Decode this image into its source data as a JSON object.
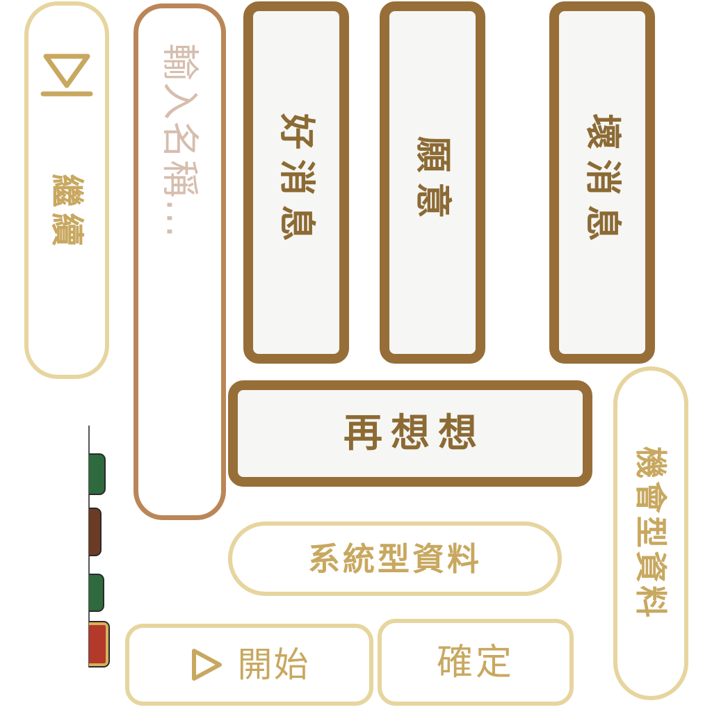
{
  "buttons": {
    "continue": {
      "label": "繼續",
      "icon": "play-to-end-icon"
    },
    "name_input": {
      "placeholder": "輸入名稱...",
      "value": ""
    },
    "good_news": {
      "label": "好消息"
    },
    "willing": {
      "label": "願意"
    },
    "bad_news": {
      "label": "壞消息"
    },
    "rethink": {
      "label": "再想想"
    },
    "opportunity_data": {
      "label": "機會型資料"
    },
    "system_data": {
      "label": "系統型資料"
    },
    "start": {
      "label": "開始",
      "icon": "play-icon"
    },
    "confirm": {
      "label": "確定"
    }
  },
  "theme": {
    "dark_border": "#976e38",
    "dark_fill": "#f6f6f4",
    "dark_text": "#8c6a34",
    "light_border": "#e6d59e",
    "light_text": "#c8a860",
    "input_border": "#ba8658",
    "placeholder": "#d6bdae",
    "tile_green": "#2f6a3e",
    "tile_brown": "#6b3b25",
    "tile_red": "#b3392b",
    "tile_gold": "#d8b25a",
    "tile_edge": "#555555"
  }
}
